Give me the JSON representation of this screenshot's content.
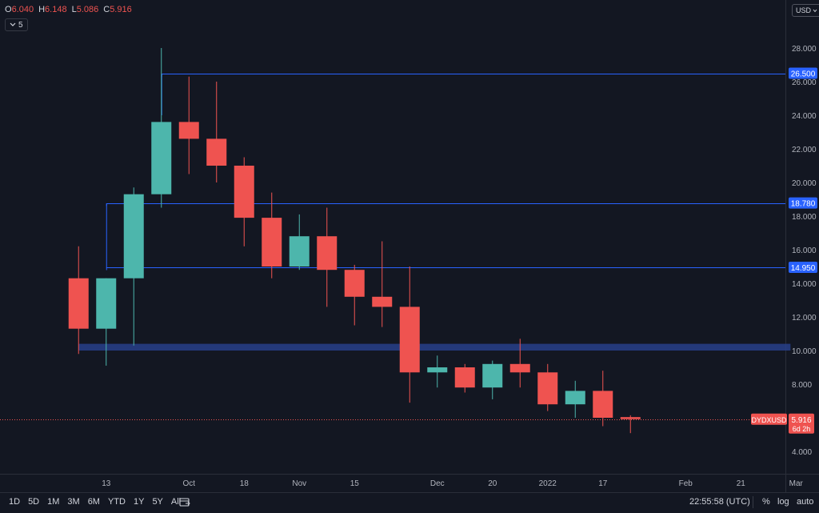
{
  "header": {
    "ohlc": [
      {
        "key": "O",
        "value": "6.040"
      },
      {
        "key": "H",
        "value": "6.148"
      },
      {
        "key": "L",
        "value": "5.086"
      },
      {
        "key": "C",
        "value": "5.916"
      }
    ],
    "indicators_count": "5",
    "currency": "USD"
  },
  "footer": {
    "ranges": [
      "1D",
      "5D",
      "1M",
      "3M",
      "6M",
      "YTD",
      "1Y",
      "5Y",
      "All"
    ],
    "time": "22:55:58 (UTC)",
    "percent_label": "%",
    "log_label": "log",
    "auto_label": "auto"
  },
  "colors": {
    "background": "#131722",
    "up": "#4db6ac",
    "down": "#ef5350",
    "level_line": "#2962ff",
    "zone": "#283f8a",
    "axis_text": "#b2b5be"
  },
  "chart_data": {
    "type": "candlestick",
    "symbol": "DYDXUSD",
    "interval": "weekly",
    "ylim": [
      2.8,
      29.0
    ],
    "y_ticks": [
      4,
      6,
      8,
      10,
      12,
      14,
      16,
      18,
      20,
      22,
      24,
      26,
      28
    ],
    "y_tick_labels": [
      "4.000",
      "6.000",
      "8.000",
      "10.000",
      "12.000",
      "14.000",
      "16.000",
      "18.000",
      "20.000",
      "22.000",
      "24.000",
      "26.000",
      "28.000"
    ],
    "x_ticks": [
      {
        "label": "13",
        "week": 1.5
      },
      {
        "label": "Oct",
        "week": 4.5
      },
      {
        "label": "18",
        "week": 6.5
      },
      {
        "label": "Nov",
        "week": 8.5
      },
      {
        "label": "15",
        "week": 10.5
      },
      {
        "label": "Dec",
        "week": 13.5
      },
      {
        "label": "20",
        "week": 15.5
      },
      {
        "label": "2022",
        "week": 17.5
      },
      {
        "label": "17",
        "week": 19.5
      },
      {
        "label": "Feb",
        "week": 22.5
      },
      {
        "label": "21",
        "week": 24.5
      },
      {
        "label": "Mar",
        "week": 26.5
      }
    ],
    "candles": [
      {
        "o": 14.3,
        "h": 16.2,
        "l": 9.8,
        "c": 11.3
      },
      {
        "o": 11.3,
        "h": 14.3,
        "l": 9.1,
        "c": 14.3
      },
      {
        "o": 14.3,
        "h": 19.7,
        "l": 10.3,
        "c": 19.3
      },
      {
        "o": 19.3,
        "h": 28.0,
        "l": 18.5,
        "c": 23.6
      },
      {
        "o": 23.6,
        "h": 26.3,
        "l": 20.5,
        "c": 22.6
      },
      {
        "o": 22.6,
        "h": 26.0,
        "l": 20.0,
        "c": 21.0
      },
      {
        "o": 21.0,
        "h": 21.5,
        "l": 16.2,
        "c": 17.9
      },
      {
        "o": 17.9,
        "h": 19.4,
        "l": 14.3,
        "c": 15.0
      },
      {
        "o": 15.0,
        "h": 18.1,
        "l": 14.8,
        "c": 16.8
      },
      {
        "o": 16.8,
        "h": 18.5,
        "l": 12.6,
        "c": 14.8
      },
      {
        "o": 14.8,
        "h": 15.1,
        "l": 11.5,
        "c": 13.2
      },
      {
        "o": 13.2,
        "h": 16.5,
        "l": 11.4,
        "c": 12.6
      },
      {
        "o": 12.6,
        "h": 15.0,
        "l": 6.9,
        "c": 8.7
      },
      {
        "o": 8.7,
        "h": 9.7,
        "l": 7.8,
        "c": 9.0
      },
      {
        "o": 9.0,
        "h": 9.2,
        "l": 7.5,
        "c": 7.8
      },
      {
        "o": 7.8,
        "h": 9.4,
        "l": 7.1,
        "c": 9.2
      },
      {
        "o": 9.2,
        "h": 10.7,
        "l": 7.8,
        "c": 8.7
      },
      {
        "o": 8.7,
        "h": 9.2,
        "l": 6.4,
        "c": 6.8
      },
      {
        "o": 6.8,
        "h": 8.2,
        "l": 6.0,
        "c": 7.6
      },
      {
        "o": 7.6,
        "h": 8.8,
        "l": 5.5,
        "c": 6.0
      },
      {
        "o": 6.04,
        "h": 6.148,
        "l": 5.086,
        "c": 5.916
      }
    ],
    "horizontal_levels": [
      {
        "value": 26.5,
        "label": "26.500",
        "start_week": 3.5
      },
      {
        "value": 18.78,
        "label": "18.780",
        "start_week": 1.5
      },
      {
        "value": 14.95,
        "label": "14.950",
        "start_week": 1.5
      }
    ],
    "zone": {
      "from": 10.0,
      "to": 10.4,
      "start_week": 0.5,
      "end_week": 26.3
    },
    "last_price": {
      "value": 5.916,
      "label": "5.916",
      "countdown": "6d 2h"
    }
  }
}
